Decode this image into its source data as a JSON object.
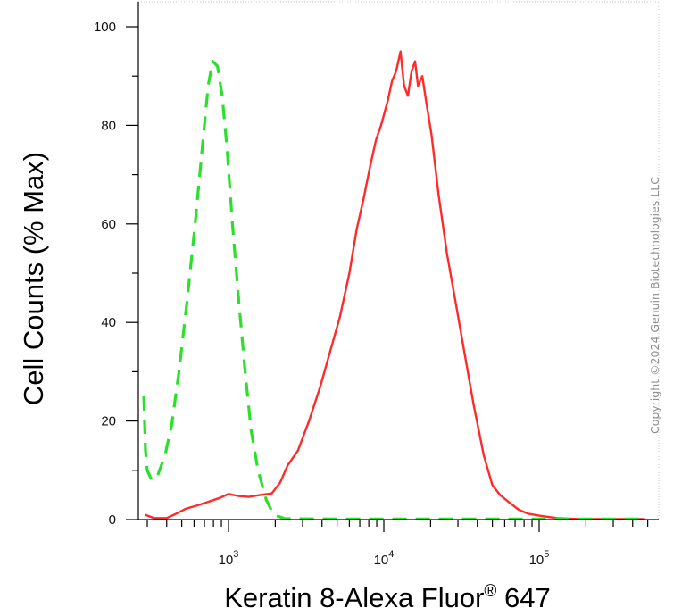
{
  "chart_data": {
    "type": "line",
    "xlabel": "Keratin 8-Alexa Fluor",
    "xlabel_sup": "®",
    "xlabel_suffix": " 647",
    "ylabel": "Cell Counts (% Max)",
    "x_scale": "log",
    "xlim": [
      280,
      500000
    ],
    "ylim": [
      0,
      100
    ],
    "y_ticks": [
      0,
      20,
      40,
      60,
      80,
      100
    ],
    "x_ticks": [
      {
        "value": 1000,
        "base": "10",
        "exp": "3"
      },
      {
        "value": 10000,
        "base": "10",
        "exp": "4"
      },
      {
        "value": 100000,
        "base": "10",
        "exp": "5"
      }
    ],
    "grid": false,
    "legend": false,
    "series": [
      {
        "color": "#ff2b2b",
        "dash": "solid",
        "points": [
          [
            290,
            1
          ],
          [
            330,
            0.3
          ],
          [
            400,
            0.3
          ],
          [
            460,
            1.2
          ],
          [
            530,
            2.2
          ],
          [
            620,
            2.8
          ],
          [
            740,
            3.6
          ],
          [
            880,
            4.4
          ],
          [
            1000,
            5.2
          ],
          [
            1150,
            4.8
          ],
          [
            1350,
            4.6
          ],
          [
            1600,
            5.0
          ],
          [
            1900,
            5.3
          ],
          [
            2150,
            7.5
          ],
          [
            2400,
            11
          ],
          [
            2800,
            14
          ],
          [
            3300,
            20
          ],
          [
            3900,
            27
          ],
          [
            4500,
            34
          ],
          [
            5200,
            41
          ],
          [
            6000,
            50
          ],
          [
            6700,
            59
          ],
          [
            7400,
            65
          ],
          [
            8200,
            72
          ],
          [
            8900,
            77
          ],
          [
            9600,
            80
          ],
          [
            10600,
            85
          ],
          [
            11300,
            89
          ],
          [
            12000,
            91
          ],
          [
            12800,
            95
          ],
          [
            13500,
            88
          ],
          [
            14300,
            86
          ],
          [
            15100,
            91
          ],
          [
            15900,
            93
          ],
          [
            16600,
            88
          ],
          [
            17700,
            90
          ],
          [
            18700,
            85
          ],
          [
            20300,
            78
          ],
          [
            22500,
            66
          ],
          [
            25500,
            54
          ],
          [
            29000,
            44
          ],
          [
            33000,
            34
          ],
          [
            38000,
            23
          ],
          [
            44000,
            13
          ],
          [
            50000,
            7
          ],
          [
            56000,
            5
          ],
          [
            64000,
            3.5
          ],
          [
            74000,
            2
          ],
          [
            85000,
            1.2
          ],
          [
            100000,
            0.8
          ],
          [
            130000,
            0.3
          ],
          [
            180000,
            0.1
          ],
          [
            280000,
            0.1
          ],
          [
            480000,
            0.1
          ]
        ]
      },
      {
        "color": "#2be02b",
        "dash": "dashed",
        "points": [
          [
            285,
            25
          ],
          [
            292,
            14
          ],
          [
            300,
            10
          ],
          [
            320,
            8
          ],
          [
            350,
            9
          ],
          [
            390,
            13
          ],
          [
            430,
            19
          ],
          [
            480,
            30
          ],
          [
            540,
            44
          ],
          [
            610,
            60
          ],
          [
            680,
            76
          ],
          [
            740,
            88
          ],
          [
            790,
            93
          ],
          [
            850,
            92
          ],
          [
            910,
            86
          ],
          [
            980,
            75
          ],
          [
            1060,
            60
          ],
          [
            1160,
            45
          ],
          [
            1270,
            31
          ],
          [
            1400,
            18
          ],
          [
            1550,
            10
          ],
          [
            1750,
            4
          ],
          [
            1950,
            1
          ],
          [
            2300,
            0.2
          ],
          [
            5000,
            0.1
          ],
          [
            20000,
            0.1
          ],
          [
            100000,
            0.1
          ],
          [
            480000,
            0.1
          ]
        ]
      }
    ]
  },
  "copyright": "Copyright ©2024 Genuin Biotechnologies LLC"
}
